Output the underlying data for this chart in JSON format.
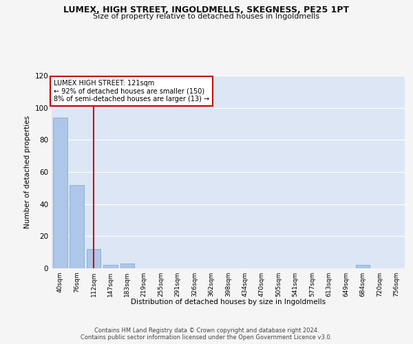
{
  "title": "LUMEX, HIGH STREET, INGOLDMELLS, SKEGNESS, PE25 1PT",
  "subtitle": "Size of property relative to detached houses in Ingoldmells",
  "xlabel": "Distribution of detached houses by size in Ingoldmells",
  "ylabel": "Number of detached properties",
  "bar_labels": [
    "40sqm",
    "76sqm",
    "112sqm",
    "147sqm",
    "183sqm",
    "219sqm",
    "255sqm",
    "291sqm",
    "326sqm",
    "362sqm",
    "398sqm",
    "434sqm",
    "470sqm",
    "505sqm",
    "541sqm",
    "577sqm",
    "613sqm",
    "649sqm",
    "684sqm",
    "720sqm",
    "756sqm"
  ],
  "bar_values": [
    94,
    52,
    12,
    2,
    3,
    0,
    0,
    0,
    0,
    0,
    0,
    0,
    0,
    0,
    0,
    0,
    0,
    0,
    2,
    0,
    0
  ],
  "bar_color": "#aec6e8",
  "bar_edge_color": "#7aadd4",
  "annotation_text_line1": "LUMEX HIGH STREET: 121sqm",
  "annotation_text_line2": "← 92% of detached houses are smaller (150)",
  "annotation_text_line3": "8% of semi-detached houses are larger (13) →",
  "annotation_box_facecolor": "#ffffff",
  "annotation_box_edgecolor": "#cc0000",
  "vline_color": "#cc0000",
  "vline_x": 2,
  "ylim": [
    0,
    120
  ],
  "yticks": [
    0,
    20,
    40,
    60,
    80,
    100,
    120
  ],
  "plot_bg_color": "#dce6f5",
  "fig_bg_color": "#f5f5f5",
  "grid_color": "#ffffff",
  "footer_line1": "Contains HM Land Registry data © Crown copyright and database right 2024.",
  "footer_line2": "Contains public sector information licensed under the Open Government Licence v3.0."
}
